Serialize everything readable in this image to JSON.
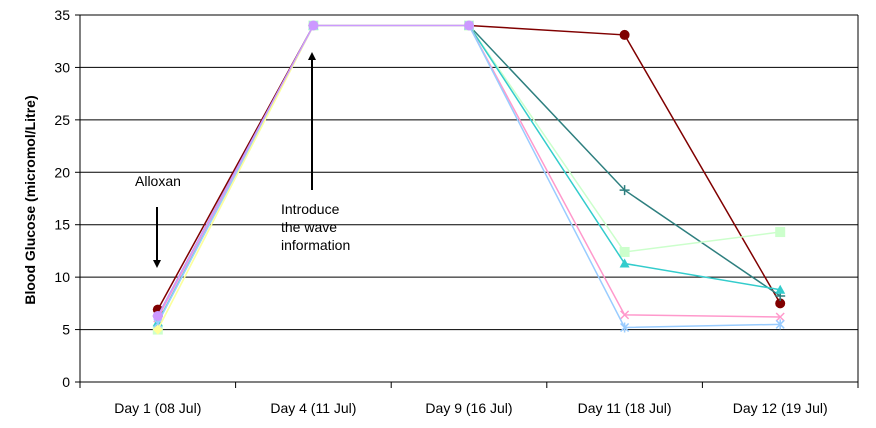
{
  "chart_data": {
    "type": "line",
    "title": "",
    "xlabel": "",
    "ylabel": "Blood Glucose (micromol/Litre)",
    "categories": [
      "Day 1 (08 Jul)",
      "Day 4 (11 Jul)",
      "Day 9 (16 Jul)",
      "Day 11 (18 Jul)",
      "Day 12 (19 Jul)"
    ],
    "ylim": [
      0,
      35
    ],
    "yticks": [
      "0",
      "5",
      "10",
      "15",
      "20",
      "25",
      "30",
      "35"
    ],
    "grid": "horizontal",
    "legend": "none",
    "series": [
      {
        "color": "#800000",
        "marker": "circle",
        "values": [
          6.9,
          34,
          34,
          33.1,
          7.5
        ]
      },
      {
        "color": "#2E7F7F",
        "marker": "plus",
        "values": [
          6.3,
          34,
          34,
          18.3,
          8.2
        ]
      },
      {
        "color": "#CCFFCC",
        "marker": "square",
        "values": [
          5.0,
          34,
          34,
          12.4,
          14.3
        ]
      },
      {
        "color": "#33CCCC",
        "marker": "triangle",
        "values": [
          5.7,
          34,
          34,
          11.3,
          8.8
        ]
      },
      {
        "color": "#FF99CC",
        "marker": "x",
        "values": [
          6.1,
          34,
          34,
          6.4,
          6.2
        ]
      },
      {
        "color": "#99CCFF",
        "marker": "star",
        "values": [
          5.6,
          34,
          34,
          5.2,
          5.5
        ]
      },
      {
        "color": "#FFFF99",
        "marker": "diamond",
        "values": [
          5.0,
          34,
          34,
          null,
          null
        ]
      },
      {
        "color": "#CC99FF",
        "marker": "circle",
        "values": [
          6.3,
          34,
          34,
          null,
          null
        ]
      }
    ],
    "annotations": [
      {
        "id": "alloxan",
        "text_lines": [
          "Alloxan"
        ]
      },
      {
        "id": "wave",
        "text_lines": [
          "Introduce",
          "the wave",
          "information"
        ]
      }
    ]
  }
}
